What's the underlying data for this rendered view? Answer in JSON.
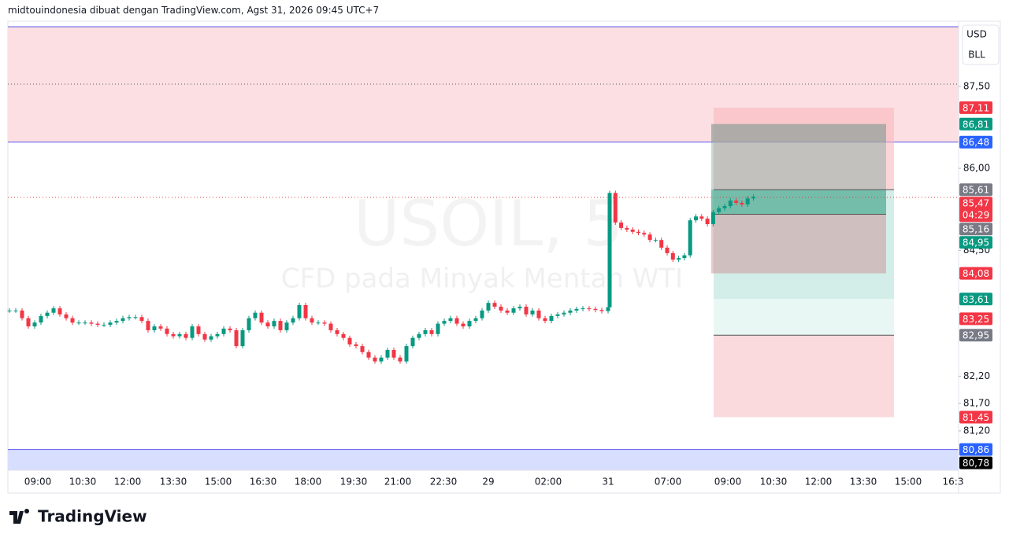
{
  "header": "midtouindonesia dibuat dengan TradingView.com, Agst 31, 2026 09:45 UTC+7",
  "toolbar": [
    "USD",
    "BLL"
  ],
  "watermark": {
    "symbol": "USOIL, 5",
    "description": "CFD pada Minyak Mentah WTI"
  },
  "footer": "TradingView",
  "chart_data": {
    "type": "candlestick",
    "up_color": "#089981",
    "down_color": "#f23645",
    "ylim": [
      80.48,
      88.69
    ],
    "yticks": [
      {
        "value": 87.5,
        "label": "87,50"
      },
      {
        "value": 86,
        "label": "86,00"
      },
      {
        "value": 84.5,
        "label": "84,50"
      },
      {
        "value": 82.2,
        "label": "82,20"
      },
      {
        "value": 81.7,
        "label": "81,70"
      },
      {
        "value": 81.2,
        "label": "81,20"
      }
    ],
    "x_labels": [
      "09:00",
      "10:30",
      "12:00",
      "13:30",
      "15:00",
      "16:30",
      "18:00",
      "19:30",
      "21:00",
      "22:30",
      "29",
      "02:00",
      "31",
      "07:00",
      "09:00",
      "10:30",
      "12:00",
      "13:30",
      "15:00",
      "16:3"
    ],
    "closes": [
      83.4,
      83.4,
      83.26,
      83.11,
      83.18,
      83.3,
      83.36,
      83.44,
      83.33,
      83.26,
      83.18,
      83.18,
      83.18,
      83.16,
      83.14,
      83.14,
      83.18,
      83.21,
      83.26,
      83.28,
      83.28,
      83.21,
      83.04,
      83.11,
      83.07,
      82.97,
      82.93,
      82.97,
      82.9,
      83.11,
      82.97,
      82.87,
      82.93,
      82.97,
      83.07,
      83.04,
      82.75,
      83.04,
      83.26,
      83.36,
      83.18,
      83.11,
      83.21,
      83.04,
      83.18,
      83.26,
      83.5,
      83.26,
      83.18,
      83.18,
      83.16,
      83.04,
      82.97,
      82.9,
      82.78,
      82.75,
      82.64,
      82.54,
      82.47,
      82.54,
      82.68,
      82.54,
      82.47,
      82.75,
      82.9,
      82.97,
      83.04,
      82.97,
      83.16,
      83.21,
      83.26,
      83.16,
      83.11,
      83.21,
      83.26,
      83.4,
      83.54,
      83.47,
      83.4,
      83.36,
      83.44,
      83.47,
      83.33,
      83.4,
      83.26,
      83.21,
      83.3,
      83.33,
      83.36,
      83.4,
      83.43,
      83.44,
      83.43,
      83.41,
      83.39,
      83.46
    ],
    "closes_2": [
      85.55,
      85.01,
      84.91,
      84.88,
      84.84,
      84.82,
      84.79,
      84.69,
      84.69,
      84.55,
      84.45,
      84.33,
      84.36,
      84.41,
      85.05,
      85.12,
      85.08,
      84.98,
      85.2,
      85.27,
      85.31,
      85.41,
      85.37,
      85.34,
      85.45,
      85.48
    ],
    "price_labels": [
      {
        "value": 87.11,
        "label": "87,11",
        "color": "#f23645"
      },
      {
        "value": 86.81,
        "label": "86,81",
        "color": "#089981"
      },
      {
        "value": 86.48,
        "label": "86,48",
        "color": "#2962ff"
      },
      {
        "value": 85.61,
        "label": "85,61",
        "color": "#787b86"
      },
      {
        "value": 85.47,
        "label": "85,47",
        "color": "#f23645",
        "countdown": "04:29"
      },
      {
        "value": 85.16,
        "label": "85,16",
        "color": "#787b86"
      },
      {
        "value": 84.95,
        "label": "84,95",
        "color": "#089981"
      },
      {
        "value": 84.08,
        "label": "84,08",
        "color": "#f23645"
      },
      {
        "value": 83.61,
        "label": "83,61",
        "color": "#089981"
      },
      {
        "value": 83.25,
        "label": "83,25",
        "color": "#f23645"
      },
      {
        "value": 82.95,
        "label": "82,95",
        "color": "#787b86"
      },
      {
        "value": 81.45,
        "label": "81,45",
        "color": "#f23645"
      },
      {
        "value": 80.86,
        "label": "80,86",
        "color": "#2962ff"
      },
      {
        "value": 80.78,
        "label": "80,78",
        "color": "#000000"
      }
    ]
  }
}
